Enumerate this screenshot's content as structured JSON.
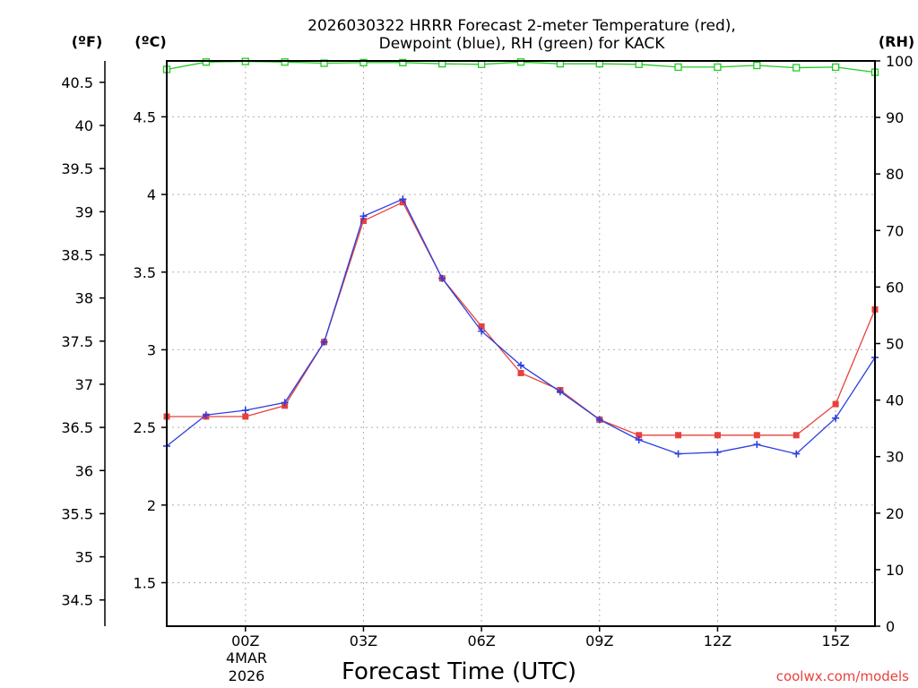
{
  "title_line1": "2026030322 HRRR Forecast 2-meter Temperature (red),",
  "title_line2": "Dewpoint (blue), RH (green) for KACK",
  "unit_f": "(ºF)",
  "unit_c": "(ºC)",
  "unit_rh": "(RH)",
  "date_label_line1": "4MAR",
  "date_label_line2": "2026",
  "credit": "coolwx.com/models",
  "chart_data": {
    "type": "line",
    "title": "2026030322 HRRR Forecast 2-meter Temperature (red), Dewpoint (blue), RH (green) for KACK",
    "xlabel": "Forecast Time (UTC)",
    "x_hours": [
      -2,
      -1,
      0,
      1,
      2,
      3,
      4,
      5,
      6,
      7,
      8,
      9,
      10,
      11,
      12,
      13,
      14,
      15,
      16
    ],
    "xlim": [
      -2,
      16
    ],
    "x_ticks": [
      {
        "hour": 0,
        "label": "00Z"
      },
      {
        "hour": 3,
        "label": "03Z"
      },
      {
        "hour": 6,
        "label": "06Z"
      },
      {
        "hour": 9,
        "label": "09Z"
      },
      {
        "hour": 12,
        "label": "12Z"
      },
      {
        "hour": 15,
        "label": "15Z"
      }
    ],
    "ylim_c": [
      1.22,
      4.86
    ],
    "y_ticks_c": [
      "1.5",
      "2",
      "2.5",
      "3",
      "3.5",
      "4",
      "4.5"
    ],
    "y_ticks_f": [
      "34.5",
      "35",
      "35.5",
      "36",
      "36.5",
      "37",
      "37.5",
      "38",
      "38.5",
      "39",
      "39.5",
      "40",
      "40.5"
    ],
    "ylim_rh": [
      0,
      100
    ],
    "y_ticks_rh": [
      "0",
      "10",
      "20",
      "30",
      "40",
      "50",
      "60",
      "70",
      "80",
      "90",
      "100"
    ],
    "series": [
      {
        "name": "Temperature",
        "units": "C",
        "color": "#e8413c",
        "values": [
          2.57,
          2.57,
          2.57,
          2.64,
          3.05,
          3.83,
          3.95,
          3.46,
          3.15,
          2.85,
          2.74,
          2.55,
          2.45,
          2.45,
          2.45,
          2.45,
          2.45,
          2.65,
          3.26
        ]
      },
      {
        "name": "Dewpoint",
        "units": "C",
        "color": "#2b3fe0",
        "values": [
          2.38,
          2.58,
          2.61,
          2.66,
          3.05,
          3.86,
          3.97,
          3.46,
          3.12,
          2.9,
          2.73,
          2.55,
          2.42,
          2.33,
          2.34,
          2.39,
          2.33,
          2.56,
          2.95
        ]
      },
      {
        "name": "RH",
        "units": "%",
        "color": "#22cc22",
        "values": [
          98.5,
          99.8,
          99.9,
          99.8,
          99.6,
          99.7,
          99.7,
          99.5,
          99.4,
          99.8,
          99.5,
          99.5,
          99.4,
          98.9,
          98.9,
          99.2,
          98.8,
          98.9,
          98.0
        ]
      }
    ]
  }
}
